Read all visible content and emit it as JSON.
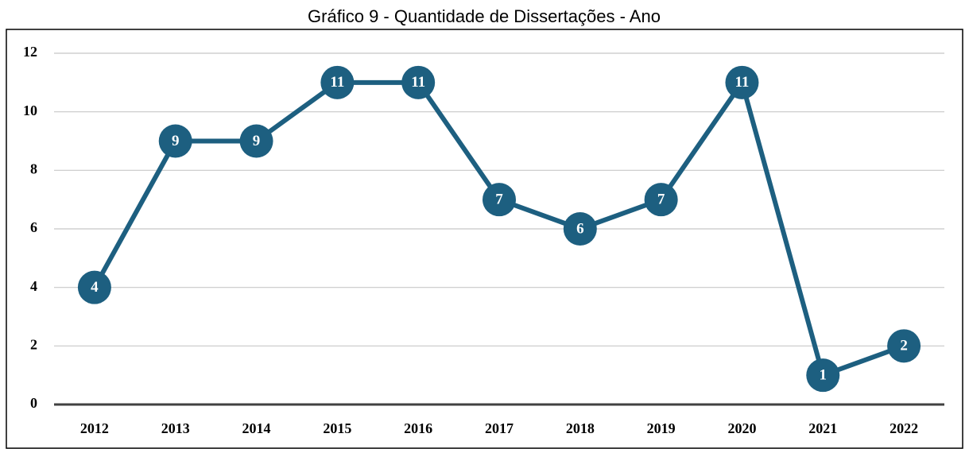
{
  "chart_data": {
    "type": "line",
    "title": "Gráfico 9 - Quantidade de Dissertações - Ano",
    "categories": [
      "2012",
      "2013",
      "2014",
      "2015",
      "2016",
      "2017",
      "2018",
      "2019",
      "2020",
      "2021",
      "2022"
    ],
    "values": [
      4,
      9,
      9,
      11,
      11,
      7,
      6,
      7,
      11,
      1,
      2
    ],
    "color": "#1d5f80",
    "ylim": [
      0,
      12
    ],
    "yticks": [
      0,
      2,
      4,
      6,
      8,
      10,
      12
    ],
    "grid": true
  }
}
